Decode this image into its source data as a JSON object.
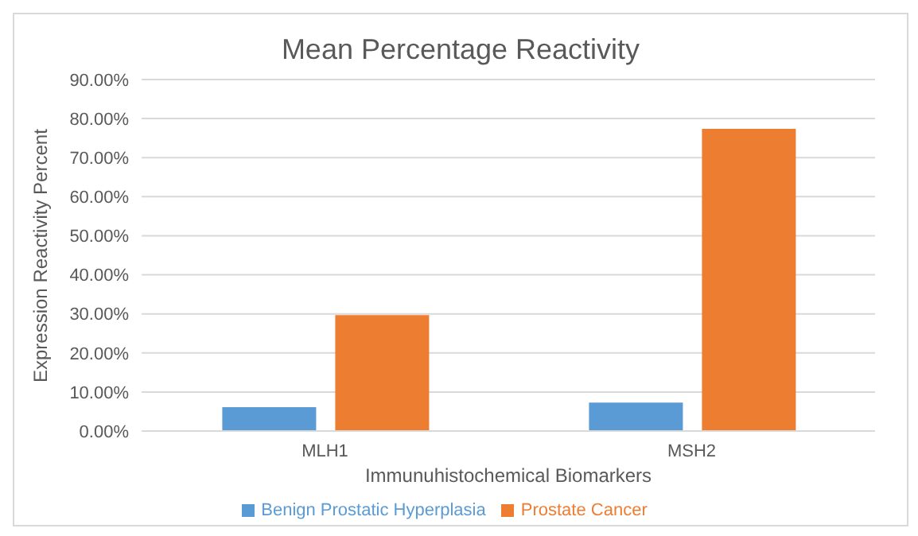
{
  "chart_data": {
    "type": "bar",
    "title": "Mean Percentage Reactivity",
    "xlabel": "Immunuhistochemical Biomarkers",
    "ylabel": "Expression Reactivity Percent",
    "categories": [
      "MLH1",
      "MSH2"
    ],
    "series": [
      {
        "name": "Benign Prostatic Hyperplasia",
        "color": "#5b9bd5",
        "values": [
          6.1,
          7.3
        ]
      },
      {
        "name": "Prostate Cancer",
        "color": "#ed7d31",
        "values": [
          29.7,
          77.4
        ]
      }
    ],
    "ylim": [
      0,
      90
    ],
    "yticks": [
      {
        "value": 0,
        "label": "0.00%"
      },
      {
        "value": 10,
        "label": "10.00%"
      },
      {
        "value": 20,
        "label": "20.00%"
      },
      {
        "value": 30,
        "label": "30.00%"
      },
      {
        "value": 40,
        "label": "40.00%"
      },
      {
        "value": 50,
        "label": "50.00%"
      },
      {
        "value": 60,
        "label": "60.00%"
      },
      {
        "value": 70,
        "label": "70.00%"
      },
      {
        "value": 80,
        "label": "80.00%"
      },
      {
        "value": 90,
        "label": "90.00%"
      }
    ],
    "grid": "y",
    "legend": "bottom"
  }
}
